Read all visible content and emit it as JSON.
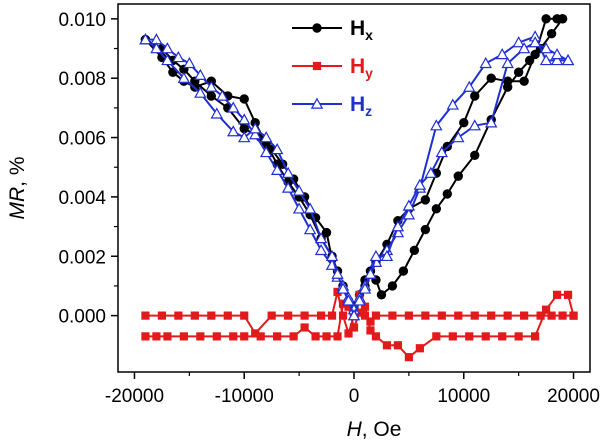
{
  "chart_data": {
    "type": "line",
    "xlabel_italic": "H",
    "xlabel_rest": ", Oe",
    "ylabel_italic": "MR",
    "ylabel_rest": ", %",
    "xlim": [
      -21500,
      21500
    ],
    "ylim": [
      -0.0019,
      0.0105
    ],
    "x_ticks": [
      -20000,
      -10000,
      0,
      10000,
      20000
    ],
    "x_tick_labels": [
      "-20000",
      "-10000",
      "0",
      "10000",
      "20000"
    ],
    "y_ticks": [
      0.0,
      0.002,
      0.004,
      0.006,
      0.008,
      0.01
    ],
    "y_tick_labels": [
      "0.000",
      "0.002",
      "0.004",
      "0.006",
      "0.008",
      "0.010"
    ],
    "legend_position": "top-center",
    "series": [
      {
        "name": "Hx",
        "label_main": "H",
        "label_sub": "x",
        "color": "#000000",
        "marker": "circle",
        "branches": [
          {
            "x": [
              -19000,
              -17500,
              -16500,
              -15500,
              -14500,
              -13000,
              -11500,
              -10000,
              -9000,
              -8000,
              -7000,
              -6000,
              -5000,
              -4000,
              -3000,
              -2000,
              -1000,
              -500,
              0,
              500,
              1000,
              2000,
              3000,
              4000,
              5000,
              6500,
              7500,
              8500,
              10000,
              11000,
              12500,
              14000,
              15500,
              16500,
              17500,
              18500,
              19000
            ],
            "y": [
              0.0093,
              0.0087,
              0.0082,
              0.0079,
              0.0077,
              0.0079,
              0.0074,
              0.0073,
              0.0065,
              0.0058,
              0.0051,
              0.0045,
              0.004,
              0.0034,
              0.0026,
              0.002,
              0.001,
              0.0005,
              0.0002,
              0.0005,
              0.001,
              0.0018,
              0.0024,
              0.0032,
              0.0036,
              0.0039,
              0.0048,
              0.0057,
              0.0065,
              0.0074,
              0.008,
              0.0079,
              0.0079,
              0.0088,
              0.01,
              0.01,
              0.01
            ]
          },
          {
            "x": [
              19000,
              18000,
              17000,
              16000,
              15000,
              14000,
              12500,
              11000,
              9500,
              8500,
              7500,
              6500,
              5500,
              4500,
              3500,
              2500,
              2000,
              1500,
              1000,
              500,
              0,
              -500,
              -1000,
              -1500,
              -2000,
              -2500,
              -3500,
              -4500,
              -5500,
              -6500,
              -7500,
              -8500,
              -10000,
              -11500,
              -13000,
              -14500,
              -15500,
              -16500,
              -17500,
              -19000
            ],
            "y": [
              0.01,
              0.0095,
              0.009,
              0.0086,
              0.0082,
              0.0077,
              0.0066,
              0.0054,
              0.0047,
              0.0041,
              0.0036,
              0.0029,
              0.0022,
              0.0015,
              0.001,
              0.0007,
              0.0012,
              0.0015,
              0.0012,
              0.0007,
              0.0003,
              0.0005,
              0.001,
              0.0015,
              0.0019,
              0.0028,
              0.0033,
              0.004,
              0.0046,
              0.0051,
              0.0056,
              0.006,
              0.0063,
              0.007,
              0.0074,
              0.0079,
              0.0083,
              0.0086,
              0.009,
              0.0093
            ]
          }
        ]
      },
      {
        "name": "Hy",
        "label_main": "H",
        "label_sub": "y",
        "color": "#e31a1c",
        "marker": "square",
        "branches": [
          {
            "x": [
              -19000,
              -17500,
              -16000,
              -14500,
              -13000,
              -11500,
              -10000,
              -9000,
              -7500,
              -6000,
              -4500,
              -3000,
              -2000,
              -1500,
              -1000,
              -500,
              0,
              500,
              1000,
              1500,
              2000,
              3500,
              5000,
              6500,
              8000,
              9500,
              11000,
              12500,
              14000,
              15500,
              17000,
              18000,
              19000,
              20000
            ],
            "y": [
              0.0,
              0.0,
              0.0,
              0.0,
              0.0,
              0.0,
              0.0,
              -0.0006,
              0.0,
              0.0,
              0.0,
              0.0,
              0.0,
              0.0008,
              0.0,
              -0.0006,
              0.0,
              0.0007,
              0.0,
              -0.0002,
              0.0,
              0.0,
              0.0,
              0.0,
              0.0,
              0.0,
              0.0,
              0.0,
              0.0,
              0.0,
              0.0,
              0.0,
              0.0,
              0.0
            ]
          },
          {
            "x": [
              20000,
              19500,
              18500,
              17500,
              16500,
              15000,
              13500,
              12000,
              10500,
              9000,
              7500,
              6000,
              5000,
              4000,
              3000,
              2000,
              1500,
              1000,
              500,
              0,
              -500,
              -1000,
              -1500,
              -2500,
              -3500,
              -4500,
              -5500,
              -7000,
              -8500,
              -10000,
              -11000,
              -12500,
              -14000,
              -15500,
              -17000,
              -18000,
              -19000
            ],
            "y": [
              0.0,
              0.0007,
              0.0007,
              0.0002,
              -0.0007,
              -0.0007,
              -0.0007,
              -0.0007,
              -0.0007,
              -0.0007,
              -0.0007,
              -0.0011,
              -0.0014,
              -0.001,
              -0.001,
              -0.0007,
              -0.0005,
              0.0003,
              0.0001,
              -0.0004,
              0.0003,
              0.0004,
              -0.0007,
              -0.0007,
              -0.0007,
              -0.0004,
              -0.0007,
              -0.0007,
              -0.0007,
              -0.0007,
              -0.0007,
              -0.0007,
              -0.0007,
              -0.0007,
              -0.0007,
              -0.0007,
              -0.0007
            ]
          }
        ]
      },
      {
        "name": "Hz",
        "label_main": "H",
        "label_sub": "z",
        "color": "#1f2fd0",
        "marker": "triangle",
        "branches": [
          {
            "x": [
              -19000,
              -18000,
              -17000,
              -16000,
              -15000,
              -14000,
              -13000,
              -12000,
              -11000,
              -10000,
              -9000,
              -8000,
              -7000,
              -6000,
              -5000,
              -4000,
              -3000,
              -2000,
              -1500,
              -1000,
              -500,
              0,
              500,
              1000,
              1500,
              2000,
              3000,
              4000,
              5000,
              6000,
              7500,
              9000,
              10500,
              12000,
              13500,
              15000,
              16500,
              17500,
              18500,
              19500
            ],
            "y": [
              0.0093,
              0.0093,
              0.009,
              0.0087,
              0.0085,
              0.0081,
              0.0077,
              0.0074,
              0.007,
              0.0066,
              0.0061,
              0.0055,
              0.0049,
              0.0043,
              0.0036,
              0.0029,
              0.0022,
              0.0017,
              0.0013,
              0.001,
              0.0006,
              0.0002,
              0.0006,
              0.001,
              0.0014,
              0.0018,
              0.0022,
              0.0028,
              0.0034,
              0.0043,
              0.0064,
              0.0071,
              0.0077,
              0.0085,
              0.0088,
              0.0092,
              0.0094,
              0.0086,
              0.0086,
              0.0086
            ]
          },
          {
            "x": [
              19500,
              18500,
              17500,
              16500,
              15500,
              14000,
              12500,
              11000,
              9500,
              8000,
              7000,
              6000,
              5000,
              4000,
              3000,
              2000,
              1500,
              1000,
              500,
              0,
              -500,
              -1000,
              -1500,
              -2000,
              -3000,
              -4000,
              -5000,
              -6000,
              -7000,
              -8000,
              -9000,
              -10000,
              -11000,
              -12500,
              -14000,
              -15500,
              -17000,
              -18000,
              -19000
            ],
            "y": [
              0.0086,
              0.0088,
              0.009,
              0.0092,
              0.009,
              0.0085,
              0.0065,
              0.0064,
              0.006,
              0.0055,
              0.0048,
              0.0044,
              0.0037,
              0.003,
              0.002,
              0.002,
              0.0014,
              0.0009,
              0.0005,
              0.0,
              0.0005,
              0.0009,
              0.0014,
              0.002,
              0.0026,
              0.0036,
              0.0042,
              0.0048,
              0.0056,
              0.006,
              0.0063,
              0.006,
              0.0062,
              0.0068,
              0.0075,
              0.008,
              0.0086,
              0.009,
              0.0093
            ]
          }
        ]
      }
    ]
  }
}
